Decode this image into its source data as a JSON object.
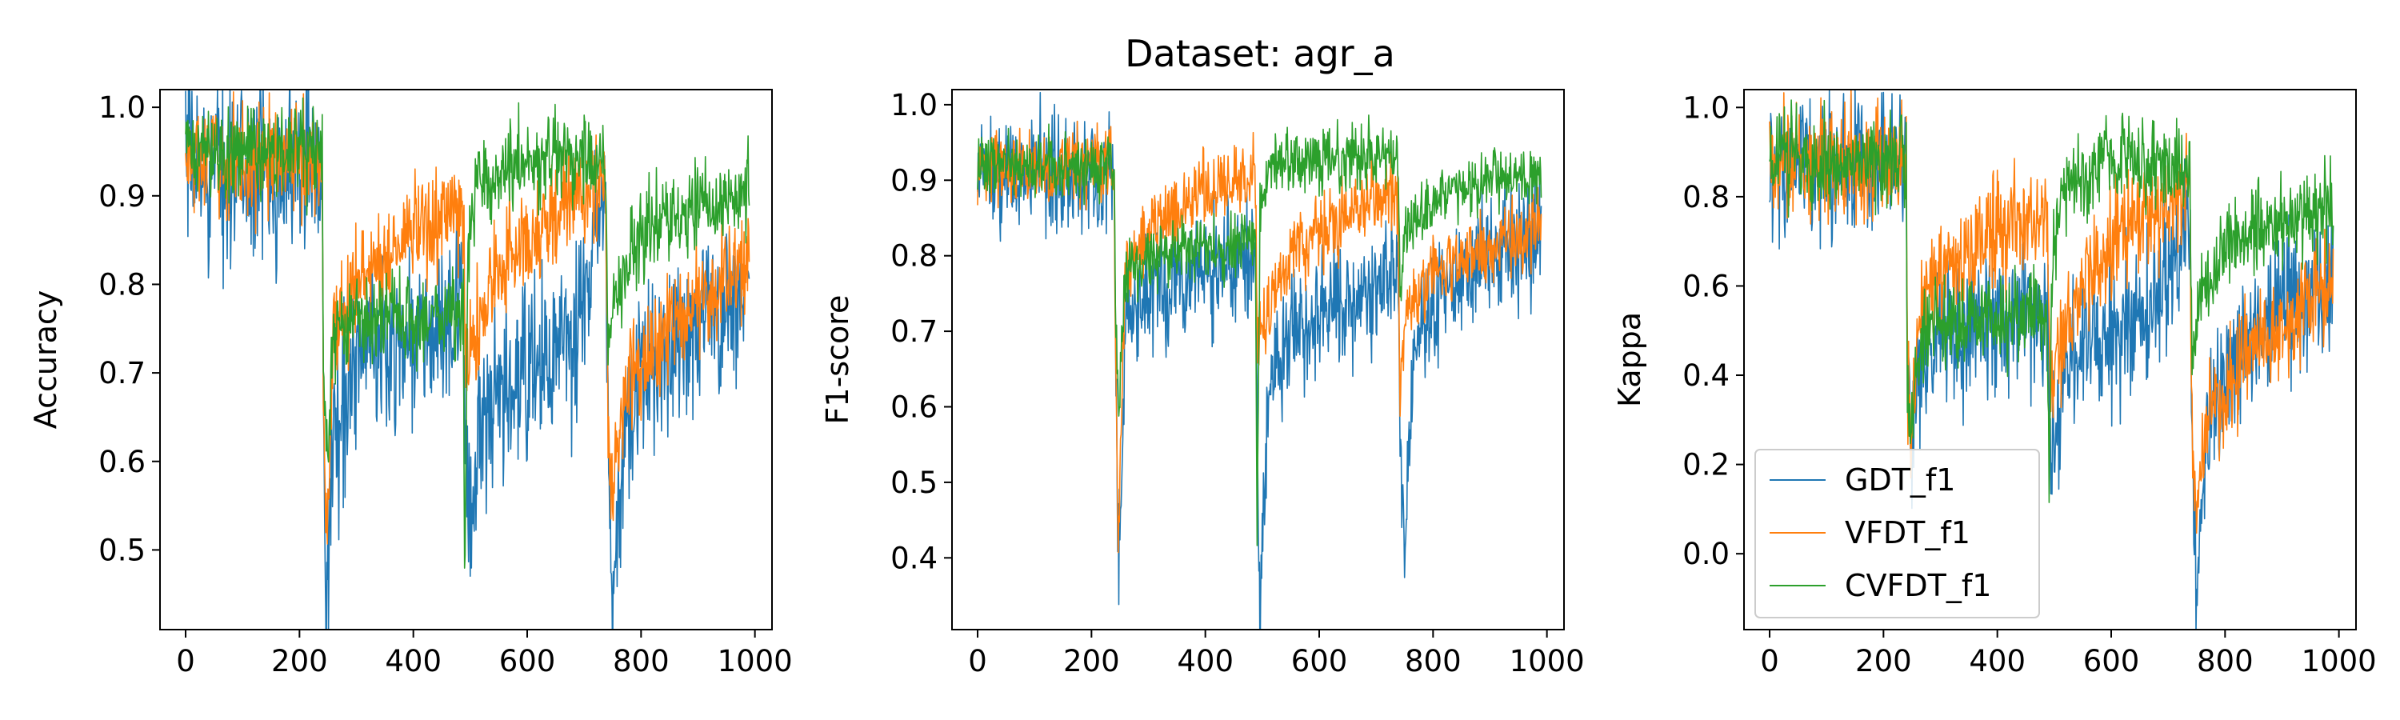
{
  "figure": {
    "title": "Dataset: agr_a",
    "legend_location": "lower-left (third panel)",
    "colors": {
      "GDT_f1": "#1f77b4",
      "VFDT_f1": "#ff7f0e",
      "CVFDT_f1": "#2ca02c"
    }
  },
  "chart_data": [
    {
      "type": "line",
      "title": "",
      "xlabel": "",
      "ylabel": "Accuracy",
      "xlim": [
        -45,
        1030
      ],
      "ylim": [
        0.41,
        1.02
      ],
      "xticks": [
        0,
        200,
        400,
        600,
        800,
        1000
      ],
      "yticks": [
        0.5,
        0.6,
        0.7,
        0.8,
        0.9,
        1.0
      ],
      "ytick_labels": [
        "0.5",
        "0.6",
        "0.7",
        "0.8",
        "0.9",
        "1.0"
      ],
      "grid": false,
      "series": [
        {
          "name": "GDT_f1",
          "color": "#1f77b4",
          "keypoints": [
            [
              0,
              0.93
            ],
            [
              100,
              0.93
            ],
            [
              240,
              0.93
            ],
            [
              242,
              0.7
            ],
            [
              247,
              0.45
            ],
            [
              260,
              0.62
            ],
            [
              300,
              0.72
            ],
            [
              400,
              0.74
            ],
            [
              488,
              0.75
            ],
            [
              492,
              0.62
            ],
            [
              500,
              0.55
            ],
            [
              520,
              0.63
            ],
            [
              600,
              0.7
            ],
            [
              680,
              0.73
            ],
            [
              700,
              0.78
            ],
            [
              720,
              0.85
            ],
            [
              738,
              0.88
            ],
            [
              742,
              0.62
            ],
            [
              750,
              0.45
            ],
            [
              770,
              0.6
            ],
            [
              800,
              0.7
            ],
            [
              900,
              0.76
            ],
            [
              990,
              0.8
            ]
          ],
          "noise": 0.05
        },
        {
          "name": "VFDT_f1",
          "color": "#ff7f0e",
          "keypoints": [
            [
              0,
              0.94
            ],
            [
              100,
              0.94
            ],
            [
              240,
              0.94
            ],
            [
              242,
              0.65
            ],
            [
              248,
              0.52
            ],
            [
              260,
              0.75
            ],
            [
              300,
              0.8
            ],
            [
              400,
              0.86
            ],
            [
              488,
              0.88
            ],
            [
              492,
              0.7
            ],
            [
              500,
              0.73
            ],
            [
              550,
              0.82
            ],
            [
              650,
              0.88
            ],
            [
              738,
              0.92
            ],
            [
              742,
              0.65
            ],
            [
              750,
              0.55
            ],
            [
              770,
              0.68
            ],
            [
              850,
              0.75
            ],
            [
              990,
              0.83
            ]
          ],
          "noise": 0.03
        },
        {
          "name": "CVFDT_f1",
          "color": "#2ca02c",
          "keypoints": [
            [
              0,
              0.95
            ],
            [
              100,
              0.95
            ],
            [
              240,
              0.95
            ],
            [
              242,
              0.72
            ],
            [
              248,
              0.6
            ],
            [
              260,
              0.74
            ],
            [
              300,
              0.76
            ],
            [
              400,
              0.76
            ],
            [
              488,
              0.77
            ],
            [
              490,
              0.47
            ],
            [
              495,
              0.8
            ],
            [
              510,
              0.92
            ],
            [
              600,
              0.94
            ],
            [
              738,
              0.94
            ],
            [
              742,
              0.72
            ],
            [
              750,
              0.78
            ],
            [
              800,
              0.86
            ],
            [
              900,
              0.89
            ],
            [
              990,
              0.9
            ]
          ],
          "noise": 0.025
        }
      ]
    },
    {
      "type": "line",
      "title": "",
      "xlabel": "",
      "ylabel": "F1-score",
      "xlim": [
        -45,
        1030
      ],
      "ylim": [
        0.305,
        1.02
      ],
      "xticks": [
        0,
        200,
        400,
        600,
        800,
        1000
      ],
      "yticks": [
        0.4,
        0.5,
        0.6,
        0.7,
        0.8,
        0.9,
        1.0
      ],
      "ytick_labels": [
        "0.4",
        "0.5",
        "0.6",
        "0.7",
        "0.8",
        "0.9",
        "1.0"
      ],
      "grid": false,
      "series": [
        {
          "name": "GDT_f1",
          "color": "#1f77b4",
          "keypoints": [
            [
              0,
              0.91
            ],
            [
              100,
              0.91
            ],
            [
              240,
              0.91
            ],
            [
              242,
              0.7
            ],
            [
              248,
              0.38
            ],
            [
              260,
              0.7
            ],
            [
              300,
              0.76
            ],
            [
              400,
              0.78
            ],
            [
              488,
              0.8
            ],
            [
              492,
              0.55
            ],
            [
              496,
              0.34
            ],
            [
              510,
              0.62
            ],
            [
              550,
              0.7
            ],
            [
              650,
              0.75
            ],
            [
              738,
              0.78
            ],
            [
              742,
              0.55
            ],
            [
              748,
              0.43
            ],
            [
              770,
              0.7
            ],
            [
              850,
              0.78
            ],
            [
              990,
              0.83
            ]
          ],
          "noise": 0.04
        },
        {
          "name": "VFDT_f1",
          "color": "#ff7f0e",
          "keypoints": [
            [
              0,
              0.92
            ],
            [
              100,
              0.92
            ],
            [
              240,
              0.92
            ],
            [
              242,
              0.7
            ],
            [
              247,
              0.41
            ],
            [
              260,
              0.78
            ],
            [
              300,
              0.84
            ],
            [
              400,
              0.89
            ],
            [
              488,
              0.91
            ],
            [
              492,
              0.68
            ],
            [
              500,
              0.7
            ],
            [
              550,
              0.8
            ],
            [
              650,
              0.86
            ],
            [
              738,
              0.89
            ],
            [
              742,
              0.62
            ],
            [
              750,
              0.72
            ],
            [
              800,
              0.78
            ],
            [
              990,
              0.84
            ]
          ],
          "noise": 0.025
        },
        {
          "name": "CVFDT_f1",
          "color": "#2ca02c",
          "keypoints": [
            [
              0,
              0.92
            ],
            [
              100,
              0.92
            ],
            [
              240,
              0.92
            ],
            [
              242,
              0.72
            ],
            [
              248,
              0.62
            ],
            [
              260,
              0.78
            ],
            [
              300,
              0.8
            ],
            [
              400,
              0.81
            ],
            [
              488,
              0.82
            ],
            [
              491,
              0.42
            ],
            [
              496,
              0.85
            ],
            [
              510,
              0.92
            ],
            [
              600,
              0.93
            ],
            [
              738,
              0.93
            ],
            [
              742,
              0.75
            ],
            [
              750,
              0.82
            ],
            [
              800,
              0.88
            ],
            [
              990,
              0.91
            ]
          ],
          "noise": 0.02
        }
      ]
    },
    {
      "type": "line",
      "title": "",
      "xlabel": "",
      "ylabel": "Kappa",
      "xlim": [
        -45,
        1030
      ],
      "ylim": [
        -0.17,
        1.04
      ],
      "xticks": [
        0,
        200,
        400,
        600,
        800,
        1000
      ],
      "yticks": [
        0.0,
        0.2,
        0.4,
        0.6,
        0.8,
        1.0
      ],
      "ytick_labels": [
        "0.0",
        "0.2",
        "0.4",
        "0.6",
        "0.8",
        "1.0"
      ],
      "grid": false,
      "legend": [
        "GDT_f1",
        "VFDT_f1",
        "CVFDT_f1"
      ],
      "series": [
        {
          "name": "GDT_f1",
          "color": "#1f77b4",
          "keypoints": [
            [
              0,
              0.87
            ],
            [
              100,
              0.87
            ],
            [
              240,
              0.87
            ],
            [
              242,
              0.4
            ],
            [
              248,
              0.22
            ],
            [
              260,
              0.42
            ],
            [
              300,
              0.5
            ],
            [
              400,
              0.53
            ],
            [
              488,
              0.55
            ],
            [
              492,
              0.3
            ],
            [
              500,
              0.22
            ],
            [
              520,
              0.42
            ],
            [
              600,
              0.5
            ],
            [
              680,
              0.55
            ],
            [
              720,
              0.7
            ],
            [
              738,
              0.78
            ],
            [
              742,
              0.3
            ],
            [
              750,
              -0.05
            ],
            [
              770,
              0.3
            ],
            [
              850,
              0.5
            ],
            [
              990,
              0.6
            ]
          ],
          "noise": 0.08
        },
        {
          "name": "VFDT_f1",
          "color": "#ff7f0e",
          "keypoints": [
            [
              0,
              0.88
            ],
            [
              100,
              0.88
            ],
            [
              240,
              0.88
            ],
            [
              242,
              0.4
            ],
            [
              248,
              0.22
            ],
            [
              260,
              0.55
            ],
            [
              300,
              0.62
            ],
            [
              400,
              0.72
            ],
            [
              488,
              0.76
            ],
            [
              492,
              0.4
            ],
            [
              500,
              0.42
            ],
            [
              550,
              0.62
            ],
            [
              650,
              0.75
            ],
            [
              738,
              0.82
            ],
            [
              742,
              0.3
            ],
            [
              750,
              0.1
            ],
            [
              770,
              0.3
            ],
            [
              850,
              0.48
            ],
            [
              990,
              0.6
            ]
          ],
          "noise": 0.06
        },
        {
          "name": "CVFDT_f1",
          "color": "#2ca02c",
          "keypoints": [
            [
              0,
              0.88
            ],
            [
              100,
              0.88
            ],
            [
              240,
              0.88
            ],
            [
              242,
              0.4
            ],
            [
              248,
              0.22
            ],
            [
              260,
              0.48
            ],
            [
              300,
              0.52
            ],
            [
              400,
              0.53
            ],
            [
              488,
              0.54
            ],
            [
              491,
              0.15
            ],
            [
              496,
              0.6
            ],
            [
              510,
              0.8
            ],
            [
              600,
              0.88
            ],
            [
              738,
              0.87
            ],
            [
              742,
              0.4
            ],
            [
              750,
              0.55
            ],
            [
              800,
              0.68
            ],
            [
              900,
              0.75
            ],
            [
              990,
              0.78
            ]
          ],
          "noise": 0.05
        }
      ]
    }
  ]
}
